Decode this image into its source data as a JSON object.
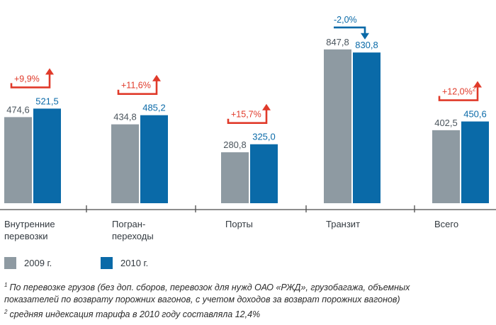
{
  "chart_data": {
    "type": "bar",
    "categories": [
      "Внутренние\nперевозки",
      "Погран-\nпереходы",
      "Порты",
      "Транзит",
      "Всего"
    ],
    "series": [
      {
        "name": "2009 г.",
        "values": [
          474.6,
          434.8,
          280.8,
          847.8,
          402.5
        ],
        "labels": [
          "474,6",
          "434,8",
          "280,8",
          "847,8",
          "402,5"
        ],
        "color": "#8e9aa2"
      },
      {
        "name": "2010 г.",
        "values": [
          521.5,
          485.2,
          325.0,
          830.8,
          450.6
        ],
        "labels": [
          "521,5",
          "485,2",
          "325,0",
          "830,8",
          "450,6"
        ],
        "color": "#0a6aa8"
      }
    ],
    "changes": [
      {
        "text": "+9,9%",
        "direction": "up",
        "sup": ""
      },
      {
        "text": "+11,6%",
        "direction": "up",
        "sup": ""
      },
      {
        "text": "+15,7%",
        "direction": "up",
        "sup": ""
      },
      {
        "text": "-2,0%",
        "direction": "down",
        "sup": ""
      },
      {
        "text": "+12,0%",
        "direction": "up",
        "sup": "2"
      }
    ],
    "up_color": "#e03a2a",
    "down_color": "#0a6aa8",
    "ylim": [
      0,
      1000
    ],
    "title": "",
    "xlabel": "",
    "ylabel": ""
  },
  "legend": [
    {
      "label": "2009 г.",
      "color": "#8e9aa2"
    },
    {
      "label": "2010 г.",
      "color": "#0a6aa8"
    }
  ],
  "footnotes": [
    {
      "num": "1",
      "text": "По перевозке грузов (без доп. сборов, перевозок для нужд ОАО «РЖД», грузобагажа, объемных"
    },
    {
      "num": "",
      "text": "показателей по возврату порожних вагонов, с учетом доходов за возврат порожних вагонов)"
    },
    {
      "num": "2",
      "text": "средняя индексация тарифа в 2010 году составляла 12,4%"
    }
  ]
}
